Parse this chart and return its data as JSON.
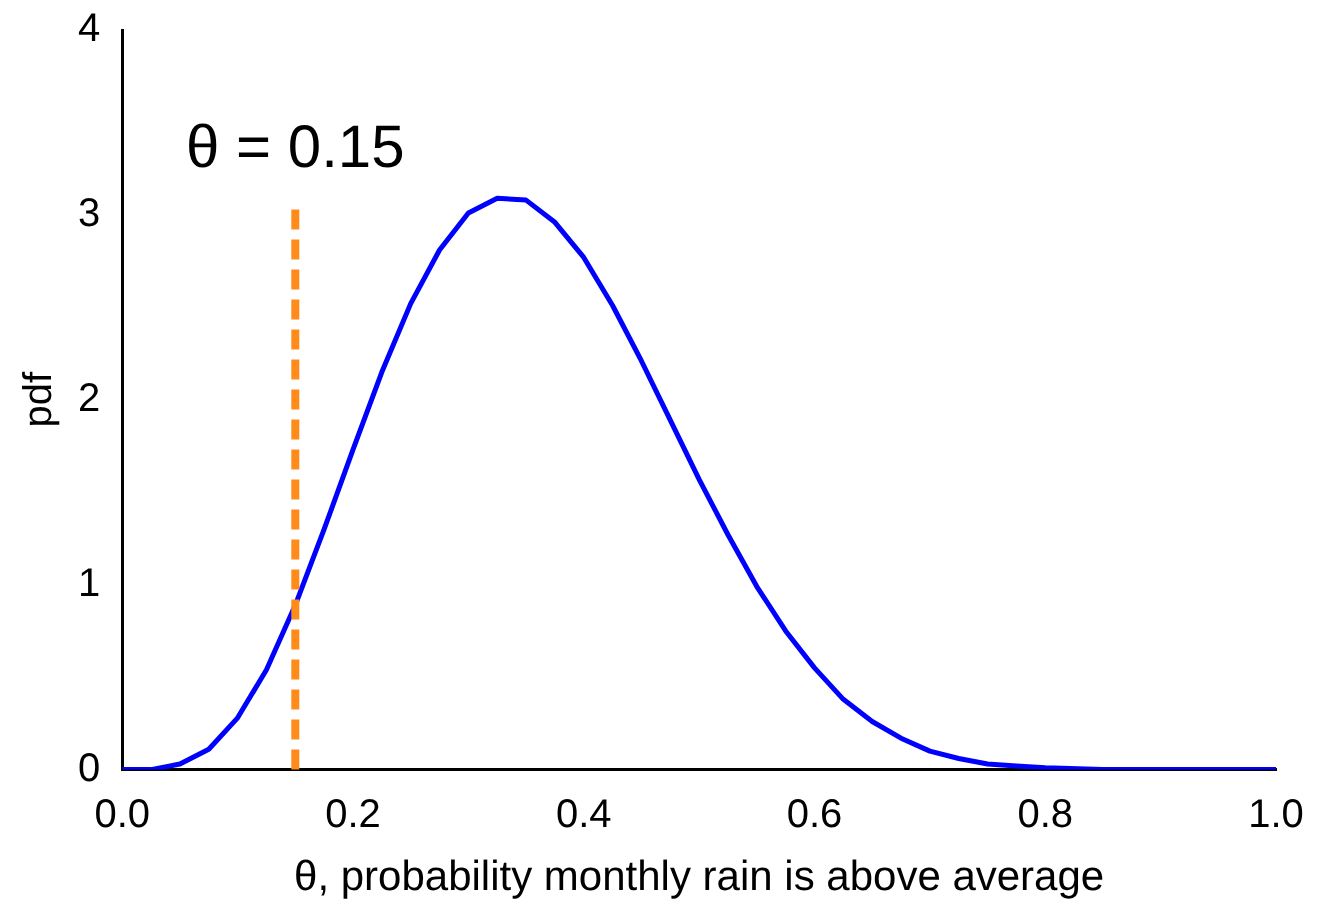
{
  "chart_data": {
    "type": "line",
    "xlabel": "θ, probability monthly rain is above average",
    "ylabel": "pdf",
    "x": [
      0,
      0.025,
      0.05,
      0.075,
      0.1,
      0.125,
      0.15,
      0.175,
      0.2,
      0.225,
      0.25,
      0.275,
      0.3,
      0.325,
      0.35,
      0.375,
      0.4,
      0.425,
      0.45,
      0.475,
      0.5,
      0.525,
      0.55,
      0.575,
      0.6,
      0.625,
      0.65,
      0.675,
      0.7,
      0.725,
      0.75,
      0.775,
      0.8,
      0.85,
      0.9,
      0.95,
      1
    ],
    "series": [
      {
        "color": "#0000ff",
        "values": [
          0,
          0,
          0.03,
          0.11,
          0.28,
          0.54,
          0.89,
          1.3,
          1.73,
          2.15,
          2.52,
          2.81,
          3.01,
          3.09,
          3.08,
          2.96,
          2.77,
          2.51,
          2.21,
          1.89,
          1.57,
          1.27,
          0.99,
          0.75,
          0.55,
          0.38,
          0.26,
          0.17,
          0.1,
          0.06,
          0.03,
          0.02,
          0.01,
          0,
          0,
          0,
          0
        ]
      }
    ],
    "xlim": [
      0,
      1
    ],
    "ylim": [
      0,
      4
    ],
    "xticks": [
      {
        "value": 0,
        "label": "0.0"
      },
      {
        "value": 0.2,
        "label": "0.2"
      },
      {
        "value": 0.4,
        "label": "0.4"
      },
      {
        "value": 0.6,
        "label": "0.6"
      },
      {
        "value": 0.8,
        "label": "0.8"
      },
      {
        "value": 1,
        "label": "1.0"
      }
    ],
    "yticks": [
      0,
      1,
      2,
      3,
      4
    ],
    "ref_lines": [
      {
        "axis": "x",
        "value": 0.15,
        "label": "θ = 0.15",
        "color": "#ff8c1a",
        "line_style": "dashed"
      }
    ],
    "grid": false,
    "legend": false
  }
}
